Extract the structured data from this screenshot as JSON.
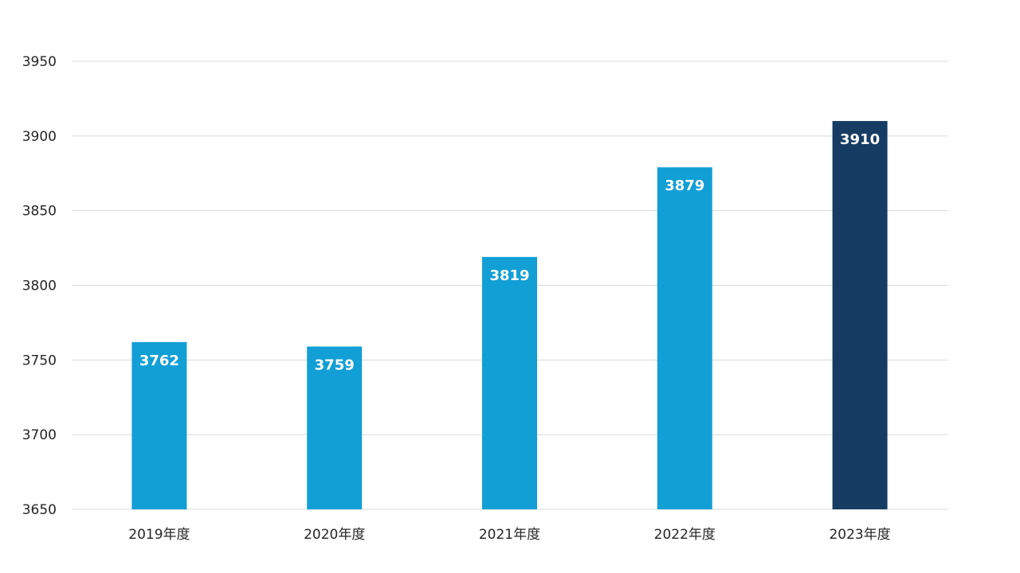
{
  "chart_data": {
    "type": "bar",
    "categories": [
      "2019年度",
      "2020年度",
      "2021年度",
      "2022年度",
      "2023年度"
    ],
    "values": [
      3762,
      3759,
      3819,
      3879,
      3910
    ],
    "data_labels": [
      "3762",
      "3759",
      "3819",
      "3879",
      "3910"
    ],
    "title": "",
    "xlabel": "",
    "ylabel": "",
    "ylim": [
      3650,
      3950
    ],
    "yticks": [
      "3650",
      "3700",
      "3750",
      "3800",
      "3850",
      "3900",
      "3950"
    ],
    "grid": true,
    "legend": "none",
    "colors": {
      "default_bar": "#119fd6",
      "highlight_bar": "#173c63",
      "highlight_index": 4
    }
  }
}
